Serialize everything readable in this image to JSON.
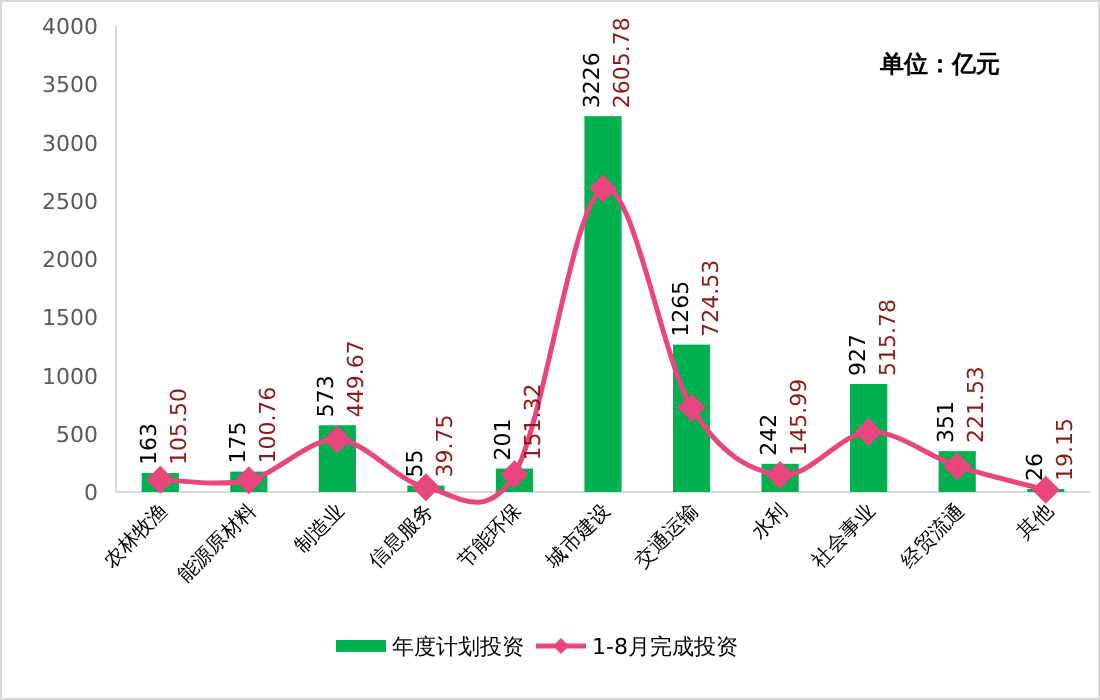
{
  "chart_data": {
    "type": "bar",
    "categories": [
      "农林牧渔",
      "能源原材料",
      "制造业",
      "信息服务",
      "节能环保",
      "城市建设",
      "交通运输",
      "水利",
      "社会事业",
      "经贸流通",
      "其他"
    ],
    "series": [
      {
        "name": "年度计划投资",
        "color": "#00b050",
        "values": [
          163,
          175,
          573,
          55,
          201,
          3226,
          1265,
          242,
          927,
          351,
          26
        ],
        "value_labels": [
          "163",
          "175",
          "573",
          "55",
          "201",
          "3226",
          "1265",
          "242",
          "927",
          "351",
          "26"
        ]
      },
      {
        "name": "1-8月完成投资",
        "type": "line",
        "color": "#e8467c",
        "marker": "diamond",
        "values": [
          105.5,
          100.76,
          449.67,
          39.75,
          151.32,
          2605.78,
          724.53,
          145.99,
          515.78,
          221.53,
          19.15
        ],
        "value_labels": [
          "105.50",
          "100.76",
          "449.67",
          "39.75",
          "151.32",
          "2605.78",
          "724.53",
          "145.99",
          "515.78",
          "221.53",
          "19.15"
        ]
      }
    ],
    "ylim": [
      0,
      4000
    ],
    "yticks": [
      0,
      500,
      1000,
      1500,
      2000,
      2500,
      3000,
      3500,
      4000
    ],
    "grid": false,
    "legend": "bottom",
    "annotations": [
      "单位：亿元"
    ]
  }
}
